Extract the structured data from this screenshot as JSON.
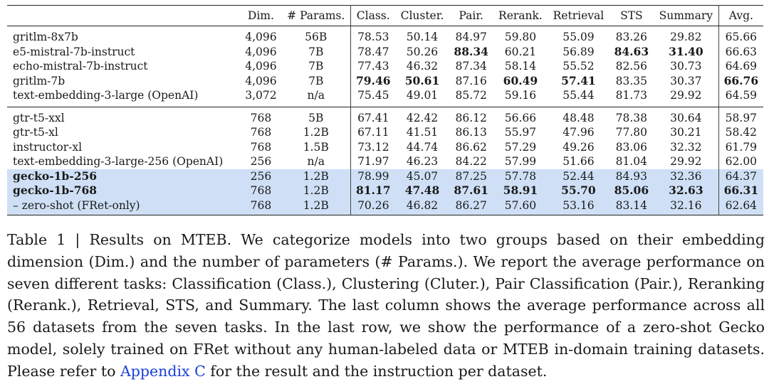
{
  "table": {
    "headers": [
      "",
      "Dim.",
      "# Params.",
      "Class.",
      "Cluster.",
      "Pair.",
      "Rerank.",
      "Retrieval",
      "STS",
      "Summary",
      "Avg."
    ],
    "group1": [
      {
        "cells": [
          "gritlm-8x7b",
          "4,096",
          "56B",
          "78.53",
          "50.14",
          "84.97",
          "59.80",
          "55.09",
          "83.26",
          "29.82",
          "65.66"
        ],
        "bold": [],
        "hl": false
      },
      {
        "cells": [
          "e5-mistral-7b-instruct",
          "4,096",
          "7B",
          "78.47",
          "50.26",
          "88.34",
          "60.21",
          "56.89",
          "84.63",
          "31.40",
          "66.63"
        ],
        "bold": [
          5,
          8,
          9
        ],
        "hl": false
      },
      {
        "cells": [
          "echo-mistral-7b-instruct",
          "4,096",
          "7B",
          "77.43",
          "46.32",
          "87.34",
          "58.14",
          "55.52",
          "82.56",
          "30.73",
          "64.69"
        ],
        "bold": [],
        "hl": false
      },
      {
        "cells": [
          "gritlm-7b",
          "4,096",
          "7B",
          "79.46",
          "50.61",
          "87.16",
          "60.49",
          "57.41",
          "83.35",
          "30.37",
          "66.76"
        ],
        "bold": [
          3,
          4,
          6,
          7,
          10
        ],
        "hl": false
      },
      {
        "cells": [
          "text-embedding-3-large (OpenAI)",
          "3,072",
          "n/a",
          "75.45",
          "49.01",
          "85.72",
          "59.16",
          "55.44",
          "81.73",
          "29.92",
          "64.59"
        ],
        "bold": [],
        "hl": false
      }
    ],
    "group2": [
      {
        "cells": [
          "gtr-t5-xxl",
          "768",
          "5B",
          "67.41",
          "42.42",
          "86.12",
          "56.66",
          "48.48",
          "78.38",
          "30.64",
          "58.97"
        ],
        "bold": [],
        "hl": false
      },
      {
        "cells": [
          "gtr-t5-xl",
          "768",
          "1.2B",
          "67.11",
          "41.51",
          "86.13",
          "55.97",
          "47.96",
          "77.80",
          "30.21",
          "58.42"
        ],
        "bold": [],
        "hl": false
      },
      {
        "cells": [
          "instructor-xl",
          "768",
          "1.5B",
          "73.12",
          "44.74",
          "86.62",
          "57.29",
          "49.26",
          "83.06",
          "32.32",
          "61.79"
        ],
        "bold": [],
        "hl": false
      },
      {
        "cells": [
          "text-embedding-3-large-256 (OpenAI)",
          "256",
          "n/a",
          "71.97",
          "46.23",
          "84.22",
          "57.99",
          "51.66",
          "81.04",
          "29.92",
          "62.00"
        ],
        "bold": [],
        "hl": false
      },
      {
        "cells": [
          "gecko-1b-256",
          "256",
          "1.2B",
          "78.99",
          "45.07",
          "87.25",
          "57.78",
          "52.44",
          "84.93",
          "32.36",
          "64.37"
        ],
        "bold": [
          0
        ],
        "hl": true
      },
      {
        "cells": [
          "gecko-1b-768",
          "768",
          "1.2B",
          "81.17",
          "47.48",
          "87.61",
          "58.91",
          "55.70",
          "85.06",
          "32.63",
          "66.31"
        ],
        "bold": [
          0,
          3,
          4,
          5,
          6,
          7,
          8,
          9,
          10
        ],
        "hl": true
      },
      {
        "cells": [
          "– zero-shot (FRet-only)",
          "768",
          "1.2B",
          "70.26",
          "46.82",
          "86.27",
          "57.60",
          "53.16",
          "83.14",
          "32.16",
          "62.64"
        ],
        "bold": [],
        "hl": true
      }
    ]
  },
  "caption": {
    "lead": "Table 1 | Results on MTEB. We categorize models into two groups based on their embedding dimension (Dim.) and the number of parameters (# Params.). We report the average performance on seven different tasks: Classification (Class.), Clustering (Cluter.), Pair Classification (Pair.), Reranking (Rerank.), Retrieval, STS, and Summary. The last column shows the average performance across all 56 datasets from the seven tasks. In the last row, we show the performance of a zero-shot Gecko model, solely trained on FRet without any human-labeled data or MTEB in-domain training datasets. Please refer to ",
    "link": "Appendix C",
    "tail": " for the result and the instruction per dataset."
  }
}
